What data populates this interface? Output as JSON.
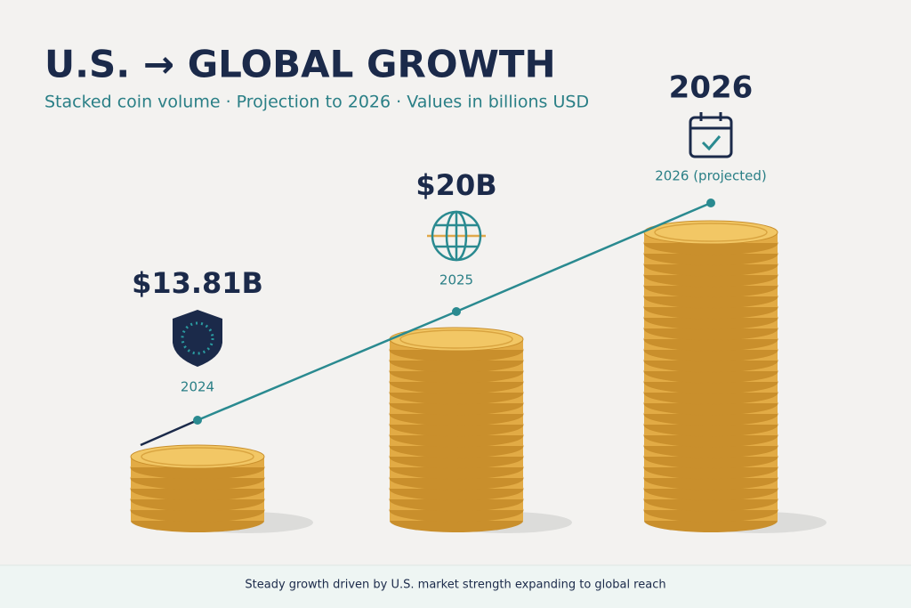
{
  "header": {
    "title": "U.S. → GLOBAL GROWTH",
    "subtitle": "Stacked coin volume · Projection to 2026 · Values in billions USD"
  },
  "stacks": [
    {
      "headline": "$13.81B",
      "label": "2024"
    },
    {
      "headline": "$20B",
      "label": "2025"
    },
    {
      "headline": "2026",
      "label": "2026 (projected)"
    }
  ],
  "footer": "Steady growth driven by U.S. market strength expanding to global reach"
}
